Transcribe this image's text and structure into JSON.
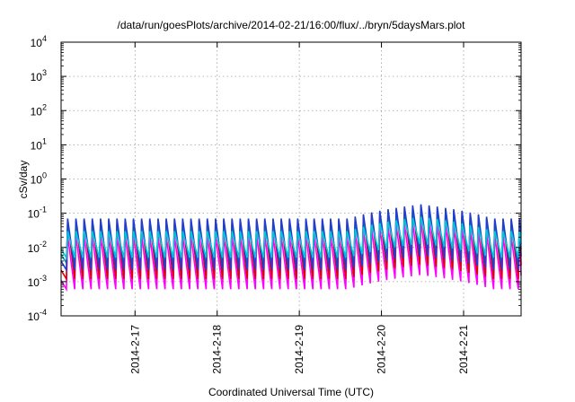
{
  "chart_data": {
    "type": "line",
    "title": "/data/run/goesPlots/archive/2014-02-21/16:00/flux/../bryn/5daysMars.plot",
    "xlabel": "Coordinated Universal Time (UTC)",
    "ylabel": "cSv/day",
    "yscale": "log",
    "ylim": [
      0.0001,
      10000
    ],
    "yticks": [
      {
        "exp": -4,
        "base": "10",
        "sup": "-4"
      },
      {
        "exp": -3,
        "base": "10",
        "sup": "-3"
      },
      {
        "exp": -2,
        "base": "10",
        "sup": "-2"
      },
      {
        "exp": -1,
        "base": "10",
        "sup": "-1"
      },
      {
        "exp": 0,
        "base": "10",
        "sup": "0"
      },
      {
        "exp": 1,
        "base": "10",
        "sup": "1"
      },
      {
        "exp": 2,
        "base": "10",
        "sup": "2"
      },
      {
        "exp": 3,
        "base": "10",
        "sup": "3"
      },
      {
        "exp": 4,
        "base": "10",
        "sup": "4"
      }
    ],
    "xlim_days": [
      16.1,
      21.7
    ],
    "xticks": [
      {
        "day": 17,
        "label": "2014-2-17"
      },
      {
        "day": 18,
        "label": "2014-2-18"
      },
      {
        "day": 19,
        "label": "2014-2-19"
      },
      {
        "day": 20,
        "label": "2014-2-20"
      },
      {
        "day": 21,
        "label": "2014-2-21"
      }
    ],
    "grid": true,
    "oscillation": {
      "period_days": 0.1,
      "phase_day": 16.18
    },
    "event": {
      "start_day": 19.6,
      "peak_day": 20.48,
      "end_day": 21.35,
      "gain": [
        1.0,
        1.25,
        2.6
      ]
    },
    "series": [
      {
        "color": "#ff00ff",
        "low": 0.0006,
        "high": 0.022
      },
      {
        "color": "#e00000",
        "low": 0.0012,
        "high": 0.065
      },
      {
        "color": "#00a0a0",
        "low": 0.0035,
        "high": 0.045
      },
      {
        "color": "#1f3fd0",
        "low": 0.0022,
        "high": 0.07
      },
      {
        "color": "#00c8d8",
        "low": 0.005,
        "high": 0.03
      }
    ]
  }
}
